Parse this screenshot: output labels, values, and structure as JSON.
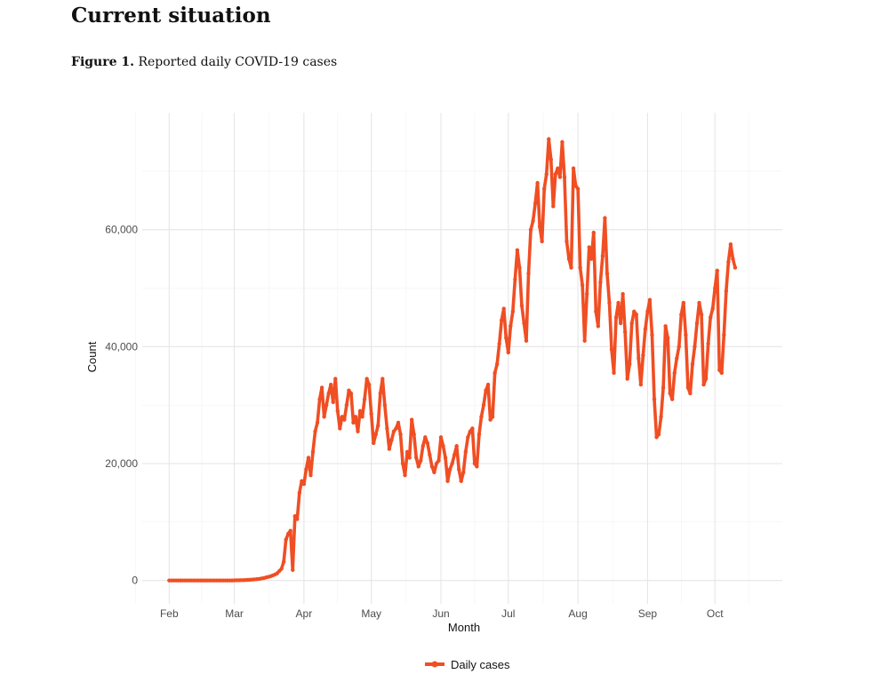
{
  "document": {
    "heading": "Current situation",
    "figure_label": "Figure 1.",
    "figure_title": "Reported daily COVID-19 cases"
  },
  "chart_data": {
    "type": "line",
    "title": "",
    "xlabel": "Month",
    "ylabel": "Count",
    "x_ticks": [
      "Feb",
      "Mar",
      "Apr",
      "May",
      "Jun",
      "Jul",
      "Aug",
      "Sep",
      "Oct"
    ],
    "x_tick_dates": [
      "2020-02-01",
      "2020-03-01",
      "2020-04-01",
      "2020-05-01",
      "2020-06-01",
      "2020-07-01",
      "2020-08-01",
      "2020-09-01",
      "2020-10-01"
    ],
    "xlim": [
      "2020-01-20",
      "2020-10-31"
    ],
    "y_ticks": [
      0,
      20000,
      40000,
      60000
    ],
    "y_tick_labels": [
      "0",
      "20,000",
      "40,000",
      "60,000"
    ],
    "ylim": [
      -4000,
      80000
    ],
    "grid": true,
    "legend_position": "bottom",
    "color": "#F04E23",
    "series": [
      {
        "name": "Daily cases",
        "start_date": "2020-02-01",
        "values": [
          0,
          0,
          0,
          0,
          0,
          0,
          0,
          0,
          0,
          0,
          0,
          0,
          0,
          0,
          0,
          0,
          0,
          0,
          0,
          0,
          0,
          0,
          0,
          0,
          0,
          0,
          0,
          0,
          0,
          20,
          30,
          40,
          50,
          60,
          80,
          100,
          120,
          150,
          180,
          220,
          270,
          330,
          400,
          500,
          600,
          700,
          850,
          1000,
          1200,
          1600,
          2000,
          3200,
          7000,
          8000,
          8500,
          1800,
          11000,
          10500,
          15000,
          17000,
          16500,
          19000,
          21000,
          18000,
          22000,
          25500,
          27000,
          31000,
          33000,
          28000,
          30000,
          32000,
          33500,
          30500,
          34500,
          29000,
          26000,
          28000,
          27500,
          30000,
          32500,
          32000,
          27000,
          28000,
          25500,
          29000,
          28000,
          31000,
          34500,
          33500,
          28500,
          23500,
          25000,
          26500,
          32000,
          34500,
          30000,
          26000,
          22500,
          24000,
          25500,
          26000,
          27000,
          25000,
          20000,
          18000,
          22000,
          21000,
          27500,
          25000,
          21000,
          19500,
          20500,
          23000,
          24500,
          23500,
          21500,
          19500,
          18500,
          20000,
          20500,
          24500,
          23000,
          21000,
          17000,
          19000,
          20000,
          21500,
          23000,
          19000,
          17000,
          18500,
          22000,
          24500,
          25500,
          26000,
          20000,
          19500,
          25000,
          28000,
          30000,
          32500,
          33500,
          27500,
          28000,
          35500,
          37000,
          40500,
          44500,
          46500,
          41500,
          39000,
          43500,
          46000,
          51500,
          56500,
          53500,
          47000,
          44000,
          41000,
          52500,
          60000,
          61500,
          64500,
          68000,
          60500,
          58000,
          67000,
          69500,
          75500,
          72000,
          64000,
          69500,
          70500,
          69000,
          75000,
          69000,
          58000,
          55000,
          53500,
          70500,
          67500,
          67000,
          53500,
          50500,
          41000,
          49000,
          57000,
          55000,
          59500,
          46000,
          43500,
          51000,
          55500,
          62000,
          52500,
          47500,
          39500,
          35500,
          45000,
          47500,
          44000,
          49000,
          42500,
          34500,
          37000,
          44000,
          46000,
          45500,
          38000,
          33500,
          38500,
          43000,
          46000,
          48000,
          42000,
          31000,
          24500,
          25000,
          28000,
          33000,
          43500,
          41500,
          32000,
          31000,
          35500,
          38000,
          40000,
          45500,
          47500,
          42000,
          33000,
          32000,
          37000,
          40000,
          44000,
          47500,
          45500,
          33500,
          34500,
          40500,
          45000,
          46500,
          50000,
          53000,
          36000,
          35500,
          42000,
          49500,
          54500,
          57500,
          55000,
          53500
        ]
      }
    ]
  }
}
